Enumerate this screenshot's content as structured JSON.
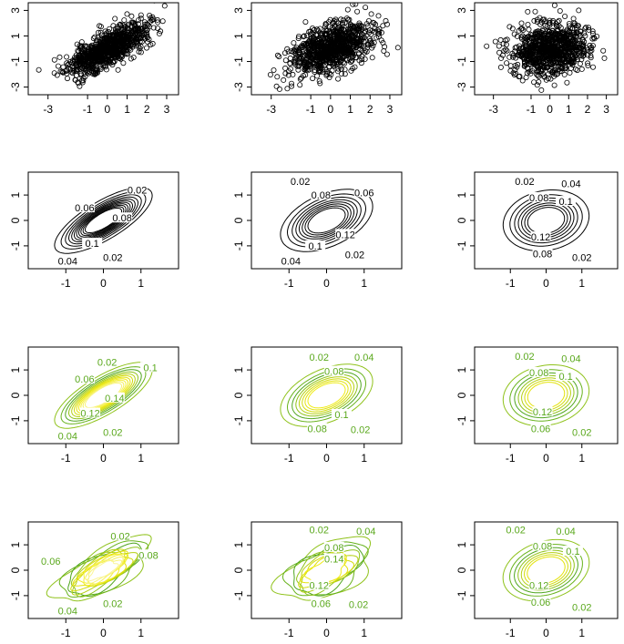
{
  "chart_data": [
    {
      "type": "scatter",
      "row": 0,
      "col": 0,
      "points_seed": 11,
      "rho": 0.75,
      "n_points": 900,
      "xlim": [
        -4,
        3.6
      ],
      "ylim": [
        -3.6,
        3.6
      ],
      "xticks": [
        -3,
        -1,
        0,
        1,
        2,
        3
      ],
      "xtick_labels": [
        "-3",
        "-1",
        "0",
        "1",
        "2",
        "3"
      ],
      "yticks": [
        -3,
        -1,
        1,
        3
      ],
      "ytick_labels": [
        "-3",
        "-1",
        "1",
        "3"
      ]
    },
    {
      "type": "scatter",
      "row": 0,
      "col": 1,
      "points_seed": 23,
      "rho": 0.45,
      "n_points": 900,
      "xlim": [
        -4,
        3.6
      ],
      "ylim": [
        -3.6,
        3.6
      ],
      "xticks": [
        -3,
        -1,
        0,
        1,
        2,
        3
      ],
      "xtick_labels": [
        "-3",
        "-1",
        "0",
        "1",
        "2",
        "3"
      ],
      "yticks": [
        -3,
        -1,
        1,
        3
      ],
      "ytick_labels": [
        "-3",
        "-1",
        "1",
        "3"
      ]
    },
    {
      "type": "scatter",
      "row": 0,
      "col": 2,
      "points_seed": 37,
      "rho": 0.15,
      "n_points": 900,
      "xlim": [
        -4,
        3.6
      ],
      "ylim": [
        -3.6,
        3.6
      ],
      "xticks": [
        -3,
        -1,
        0,
        1,
        2,
        3
      ],
      "xtick_labels": [
        "-3",
        "-1",
        "0",
        "1",
        "2",
        "3"
      ],
      "yticks": [
        -3,
        -1,
        1,
        3
      ],
      "ytick_labels": [
        "-3",
        "-1",
        "1",
        "3"
      ]
    },
    {
      "type": "contour",
      "row": 1,
      "col": 0,
      "style": "black",
      "rho": 0.75,
      "xlim": [
        -2.0,
        2.0
      ],
      "ylim": [
        -1.9,
        1.9
      ],
      "xticks": [
        -1,
        0,
        1
      ],
      "xtick_labels": [
        "-1",
        "0",
        "1"
      ],
      "yticks": [
        -1,
        0,
        1
      ],
      "ytick_labels": [
        "-1",
        "0",
        "1"
      ],
      "levels": [
        0.02,
        0.04,
        0.06,
        0.08,
        0.1,
        0.12,
        0.14,
        0.16,
        0.18,
        0.2,
        0.22
      ],
      "labels": [
        {
          "text": "0.02",
          "x": 0.9,
          "y": 1.2
        },
        {
          "text": "0.06",
          "x": -0.5,
          "y": 0.5
        },
        {
          "text": "0.08",
          "x": 0.5,
          "y": 0.1
        },
        {
          "text": "0.1",
          "x": -0.3,
          "y": -0.9
        },
        {
          "text": "0.04",
          "x": -0.95,
          "y": -1.6
        },
        {
          "text": "0.02",
          "x": 0.25,
          "y": -1.45
        }
      ]
    },
    {
      "type": "contour",
      "row": 1,
      "col": 1,
      "style": "black",
      "rho": 0.45,
      "xlim": [
        -2.0,
        2.0
      ],
      "ylim": [
        -1.9,
        1.9
      ],
      "xticks": [
        -1,
        0,
        1
      ],
      "xtick_labels": [
        "-1",
        "0",
        "1"
      ],
      "yticks": [
        -1,
        0,
        1
      ],
      "ytick_labels": [
        "-1",
        "0",
        "1"
      ],
      "levels": [
        0.02,
        0.04,
        0.06,
        0.08,
        0.1,
        0.12,
        0.14,
        0.16
      ],
      "labels": [
        {
          "text": "0.02",
          "x": -0.7,
          "y": 1.55
        },
        {
          "text": "0.08",
          "x": -0.15,
          "y": 1.0
        },
        {
          "text": "0.06",
          "x": 1.0,
          "y": 1.1
        },
        {
          "text": "0.12",
          "x": 0.5,
          "y": -0.55
        },
        {
          "text": "0.1",
          "x": -0.3,
          "y": -1.0
        },
        {
          "text": "0.04",
          "x": -0.95,
          "y": -1.6
        },
        {
          "text": "0.02",
          "x": 0.75,
          "y": -1.35
        }
      ]
    },
    {
      "type": "contour",
      "row": 1,
      "col": 2,
      "style": "black",
      "rho": 0.15,
      "xlim": [
        -2.0,
        2.0
      ],
      "ylim": [
        -1.9,
        1.9
      ],
      "xticks": [
        -1,
        0,
        1
      ],
      "xtick_labels": [
        "-1",
        "0",
        "1"
      ],
      "yticks": [
        -1,
        0,
        1
      ],
      "ytick_labels": [
        "-1",
        "0",
        "1"
      ],
      "levels": [
        0.02,
        0.04,
        0.06,
        0.08,
        0.1,
        0.12,
        0.14
      ],
      "labels": [
        {
          "text": "0.02",
          "x": -0.6,
          "y": 1.55
        },
        {
          "text": "0.04",
          "x": 0.7,
          "y": 1.45
        },
        {
          "text": "0.08",
          "x": -0.2,
          "y": 0.9
        },
        {
          "text": "0.1",
          "x": 0.55,
          "y": 0.75
        },
        {
          "text": "0.12",
          "x": -0.15,
          "y": -0.65
        },
        {
          "text": "0.08",
          "x": -0.1,
          "y": -1.3
        },
        {
          "text": "0.02",
          "x": 1.0,
          "y": -1.45
        }
      ]
    },
    {
      "type": "contour",
      "row": 2,
      "col": 0,
      "style": "green",
      "rho": 0.75,
      "xlim": [
        -2.0,
        2.0
      ],
      "ylim": [
        -1.9,
        1.9
      ],
      "xticks": [
        -1,
        0,
        1
      ],
      "xtick_labels": [
        "-1",
        "0",
        "1"
      ],
      "yticks": [
        -1,
        0,
        1
      ],
      "ytick_labels": [
        "-1",
        "0",
        "1"
      ],
      "levels": [
        0.02,
        0.04,
        0.06,
        0.08,
        0.1,
        0.12,
        0.14,
        0.16,
        0.18,
        0.2,
        0.22
      ],
      "labels": [
        {
          "text": "0.02",
          "x": 0.1,
          "y": 1.3
        },
        {
          "text": "0.06",
          "x": -0.5,
          "y": 0.65
        },
        {
          "text": "0.1",
          "x": 1.25,
          "y": 1.1
        },
        {
          "text": "0.12",
          "x": -0.35,
          "y": -0.7
        },
        {
          "text": "0.14",
          "x": 0.3,
          "y": -0.1
        },
        {
          "text": "0.04",
          "x": -0.95,
          "y": -1.6
        },
        {
          "text": "0.02",
          "x": 0.25,
          "y": -1.45
        }
      ]
    },
    {
      "type": "contour",
      "row": 2,
      "col": 1,
      "style": "green",
      "rho": 0.45,
      "xlim": [
        -2.0,
        2.0
      ],
      "ylim": [
        -1.9,
        1.9
      ],
      "xticks": [
        -1,
        0,
        1
      ],
      "xtick_labels": [
        "-1",
        "0",
        "1"
      ],
      "yticks": [
        -1,
        0,
        1
      ],
      "ytick_labels": [
        "-1",
        "0",
        "1"
      ],
      "levels": [
        0.02,
        0.04,
        0.06,
        0.08,
        0.1,
        0.12,
        0.14,
        0.16
      ],
      "labels": [
        {
          "text": "0.02",
          "x": -0.2,
          "y": 1.5
        },
        {
          "text": "0.04",
          "x": 1.0,
          "y": 1.5
        },
        {
          "text": "0.08",
          "x": 0.2,
          "y": 0.95
        },
        {
          "text": "0.1",
          "x": 0.4,
          "y": -0.75
        },
        {
          "text": "0.08",
          "x": -0.25,
          "y": -1.3
        },
        {
          "text": "0.02",
          "x": 0.9,
          "y": -1.35
        }
      ]
    },
    {
      "type": "contour",
      "row": 2,
      "col": 2,
      "style": "green",
      "rho": 0.15,
      "xlim": [
        -2.0,
        2.0
      ],
      "ylim": [
        -1.9,
        1.9
      ],
      "xticks": [
        -1,
        0,
        1
      ],
      "xtick_labels": [
        "-1",
        "0",
        "1"
      ],
      "yticks": [
        -1,
        0,
        1
      ],
      "ytick_labels": [
        "-1",
        "0",
        "1"
      ],
      "levels": [
        0.02,
        0.04,
        0.06,
        0.08,
        0.1,
        0.12,
        0.14
      ],
      "labels": [
        {
          "text": "0.02",
          "x": -0.6,
          "y": 1.55
        },
        {
          "text": "0.04",
          "x": 0.7,
          "y": 1.45
        },
        {
          "text": "0.08",
          "x": -0.2,
          "y": 0.9
        },
        {
          "text": "0.1",
          "x": 0.55,
          "y": 0.75
        },
        {
          "text": "0.12",
          "x": -0.1,
          "y": -0.65
        },
        {
          "text": "0.06",
          "x": -0.15,
          "y": -1.3
        },
        {
          "text": "0.02",
          "x": 1.0,
          "y": -1.45
        }
      ]
    },
    {
      "type": "contour",
      "row": 3,
      "col": 0,
      "style": "green",
      "rho": 0.7,
      "bumpy": true,
      "xlim": [
        -2.0,
        2.0
      ],
      "ylim": [
        -1.9,
        1.9
      ],
      "xticks": [
        -1,
        0,
        1
      ],
      "xtick_labels": [
        "-1",
        "0",
        "1"
      ],
      "yticks": [
        -1,
        0,
        1
      ],
      "ytick_labels": [
        "-1",
        "0",
        "1"
      ],
      "levels": [
        0.02,
        0.04,
        0.06,
        0.08,
        0.1,
        0.12,
        0.14,
        0.16,
        0.18,
        0.2,
        0.22,
        0.24
      ],
      "labels": [
        {
          "text": "0.02",
          "x": 0.45,
          "y": 1.35
        },
        {
          "text": "0.06",
          "x": -1.4,
          "y": 0.35
        },
        {
          "text": "0.08",
          "x": 1.2,
          "y": 0.6
        },
        {
          "text": "0.04",
          "x": -0.95,
          "y": -1.6
        },
        {
          "text": "0.02",
          "x": 0.25,
          "y": -1.3
        }
      ]
    },
    {
      "type": "contour",
      "row": 3,
      "col": 1,
      "style": "green",
      "rho": 0.5,
      "bumpy": true,
      "xlim": [
        -2.0,
        2.0
      ],
      "ylim": [
        -1.9,
        1.9
      ],
      "xticks": [
        -1,
        0,
        1
      ],
      "xtick_labels": [
        "-1",
        "0",
        "1"
      ],
      "yticks": [
        -1,
        0,
        1
      ],
      "ytick_labels": [
        "-1",
        "0",
        "1"
      ],
      "levels": [
        0.02,
        0.04,
        0.06,
        0.08,
        0.1,
        0.12,
        0.14,
        0.16
      ],
      "labels": [
        {
          "text": "0.02",
          "x": -0.2,
          "y": 1.6
        },
        {
          "text": "0.04",
          "x": 1.05,
          "y": 1.55
        },
        {
          "text": "0.08",
          "x": 0.2,
          "y": 0.9
        },
        {
          "text": "0.14",
          "x": 0.2,
          "y": 0.45
        },
        {
          "text": "0.12",
          "x": -0.2,
          "y": -0.6
        },
        {
          "text": "0.06",
          "x": -0.15,
          "y": -1.3
        },
        {
          "text": "0.02",
          "x": 0.85,
          "y": -1.35
        }
      ]
    },
    {
      "type": "contour",
      "row": 3,
      "col": 2,
      "style": "green",
      "rho": 0.25,
      "xlim": [
        -2.0,
        2.0
      ],
      "ylim": [
        -1.9,
        1.9
      ],
      "xticks": [
        -1,
        0,
        1
      ],
      "xtick_labels": [
        "-1",
        "0",
        "1"
      ],
      "yticks": [
        -1,
        0,
        1
      ],
      "ytick_labels": [
        "-1",
        "0",
        "1"
      ],
      "levels": [
        0.02,
        0.04,
        0.06,
        0.08,
        0.1,
        0.12,
        0.14
      ],
      "labels": [
        {
          "text": "0.02",
          "x": -0.85,
          "y": 1.6
        },
        {
          "text": "0.04",
          "x": 0.55,
          "y": 1.55
        },
        {
          "text": "0.08",
          "x": -0.1,
          "y": 0.95
        },
        {
          "text": "0.1",
          "x": 0.75,
          "y": 0.75
        },
        {
          "text": "0.12",
          "x": -0.2,
          "y": -0.6
        },
        {
          "text": "0.06",
          "x": -0.15,
          "y": -1.25
        },
        {
          "text": "0.02",
          "x": 1.0,
          "y": -1.45
        }
      ]
    }
  ]
}
